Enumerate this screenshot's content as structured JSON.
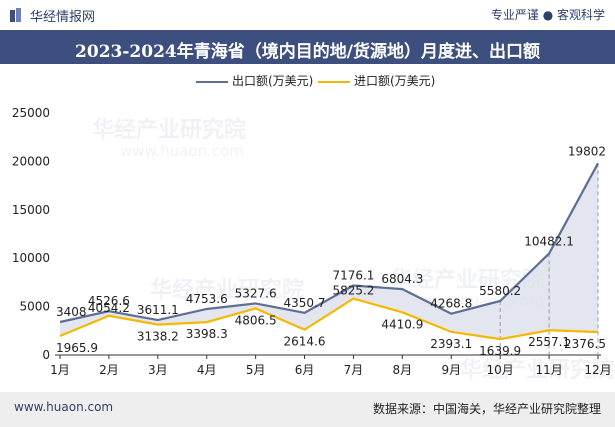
{
  "header": {
    "brand": "华经情报网",
    "tagline": "专业严谨 ● 客观科学",
    "title": "2023-2024年青海省（境内目的地/货源地）月度进、出口额"
  },
  "legend": {
    "export_label": "出口额(万美元)",
    "import_label": "进口额(万美元)"
  },
  "watermark": {
    "cn": "华经产业研究院",
    "url": "www.huaon.com"
  },
  "footer": {
    "website": "www.huaon.com",
    "source": "数据来源：中国海关，华经产业研究院整理"
  },
  "colors": {
    "export_line": "#5e6e94",
    "export_fill": "#d9dde8",
    "import_line": "#f5b800",
    "title_bg": "#3d4f7e",
    "footer_bg": "#eeeeee"
  },
  "chart_data": {
    "type": "line",
    "categories": [
      "1月",
      "2月",
      "3月",
      "4月",
      "5月",
      "6月",
      "7月",
      "8月",
      "9月",
      "10月",
      "11月",
      "12月"
    ],
    "series": [
      {
        "name": "出口额(万美元)",
        "values": [
          3408,
          4526.6,
          3611.1,
          4753.6,
          5327.6,
          4350.7,
          7176.1,
          6804.3,
          4268.8,
          5580.2,
          10482.1,
          19802
        ],
        "labels": [
          "3408",
          "4526.6",
          "3611.1",
          "4753.6",
          "5327.6",
          "4350.7",
          "7176.1",
          "6804.3",
          "4268.8",
          "5580.2",
          "10482.1",
          "19802"
        ]
      },
      {
        "name": "进口额(万美元)",
        "values": [
          1965.9,
          4054.2,
          3138.2,
          3398.3,
          4806.5,
          2614.6,
          5825.2,
          4410.9,
          2393.1,
          1639.9,
          2557.1,
          2376.5
        ],
        "labels": [
          "1965.9",
          "4054.2",
          "3138.2",
          "3398.3",
          "4806.5",
          "2614.6",
          "5825.2",
          "4410.9",
          "2393.1",
          "1639.9",
          "2557.1",
          "2376.5"
        ]
      }
    ],
    "yticks": [
      "0",
      "5000",
      "10000",
      "15000",
      "20000",
      "25000"
    ],
    "ylim": [
      0,
      25000
    ],
    "grid": false,
    "legend_position": "top"
  }
}
